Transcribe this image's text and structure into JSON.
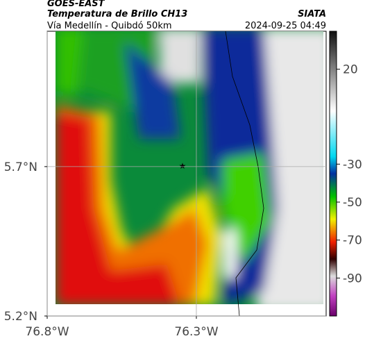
{
  "header": {
    "title": "GOES-EAST",
    "subtitle": "Temperatura de Brillo CH13",
    "source": "SIATA",
    "route": "Vía Medellín - Quibdó 50km",
    "datetime": "2024-09-25 04:49"
  },
  "map": {
    "xlim": [
      -76.8,
      -75.865
    ],
    "ylim": [
      5.2,
      6.153
    ],
    "xticks": [
      {
        "value": -76.8,
        "label": "76.8°W"
      },
      {
        "value": -76.3,
        "label": "76.3°W"
      }
    ],
    "yticks": [
      {
        "value": 5.2,
        "label": "5.2°N"
      },
      {
        "value": 5.7,
        "label": "5.7°N"
      }
    ],
    "grid": true
  },
  "colorbar": {
    "lim": [
      -110,
      40
    ],
    "ticks": [
      20,
      -30,
      -50,
      -70,
      -90
    ]
  }
}
